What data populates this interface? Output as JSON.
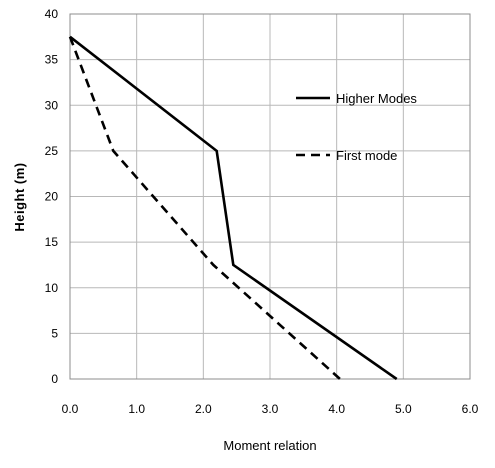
{
  "chart_data": {
    "type": "line",
    "xlabel": "Moment relation",
    "ylabel": "Height (m)",
    "xlim": [
      0,
      6
    ],
    "ylim": [
      0,
      40
    ],
    "x_ticks": [
      "0.0",
      "1.0",
      "2.0",
      "3.0",
      "4.0",
      "5.0",
      "6.0"
    ],
    "y_ticks": [
      "0",
      "5",
      "10",
      "15",
      "20",
      "25",
      "30",
      "35",
      "40"
    ],
    "grid": true,
    "legend_position": "right",
    "series": [
      {
        "name": "Higher Modes",
        "line_style": "solid",
        "color": "#000000",
        "points": [
          {
            "x": 0.0,
            "y": 37.5
          },
          {
            "x": 2.2,
            "y": 25.0
          },
          {
            "x": 2.45,
            "y": 12.5
          },
          {
            "x": 4.9,
            "y": 0.0
          }
        ]
      },
      {
        "name": "First mode",
        "line_style": "dashed",
        "color": "#000000",
        "points": [
          {
            "x": 0.0,
            "y": 37.5
          },
          {
            "x": 0.65,
            "y": 25.0
          },
          {
            "x": 2.15,
            "y": 12.5
          },
          {
            "x": 4.05,
            "y": 0.0
          }
        ]
      }
    ]
  }
}
